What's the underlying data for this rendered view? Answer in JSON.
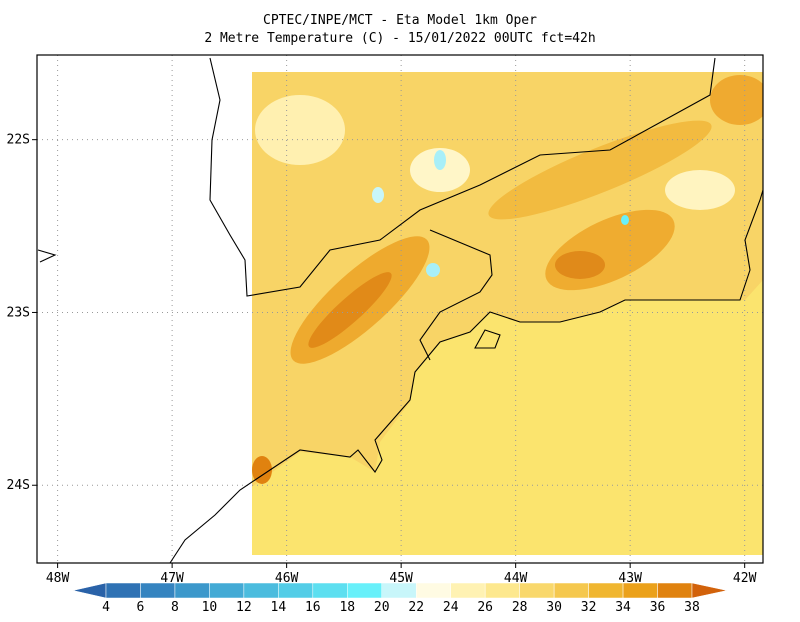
{
  "map": {
    "title": "CPTEC/INPE/MCT -  Eta Model 1km Oper",
    "subtitle": "2 Metre Temperature (C) - 15/01/2022 00UTC fct=42h",
    "xlim": [
      -48.18,
      -41.84
    ],
    "ylim": [
      -24.45,
      -21.51
    ],
    "lon_ticks": [
      {
        "value": -48,
        "label": "48W"
      },
      {
        "value": -47,
        "label": "47W"
      },
      {
        "value": -46,
        "label": "46W"
      },
      {
        "value": -45,
        "label": "45W"
      },
      {
        "value": -44,
        "label": "44W"
      },
      {
        "value": -43,
        "label": "43W"
      },
      {
        "value": -42,
        "label": "42W"
      }
    ],
    "lat_ticks": [
      {
        "value": -22,
        "label": "22S"
      },
      {
        "value": -23,
        "label": "23S"
      },
      {
        "value": -24,
        "label": "24S"
      }
    ],
    "grid": true,
    "colorbar": {
      "ticks": [
        4,
        6,
        8,
        10,
        12,
        14,
        16,
        18,
        20,
        22,
        24,
        26,
        28,
        30,
        32,
        34,
        36,
        38
      ],
      "colors": [
        "#2a62a8",
        "#2f72b4",
        "#3584c0",
        "#3c98cb",
        "#43aad5",
        "#4bbcde",
        "#53cde7",
        "#5ddff0",
        "#68f0fa",
        "#c8f6fa",
        "#fffbe3",
        "#fff2b3",
        "#fde88e",
        "#f9d86c",
        "#f5c84e",
        "#f0b630",
        "#eba11a",
        "#e0820f",
        "#d2620b"
      ]
    }
  }
}
